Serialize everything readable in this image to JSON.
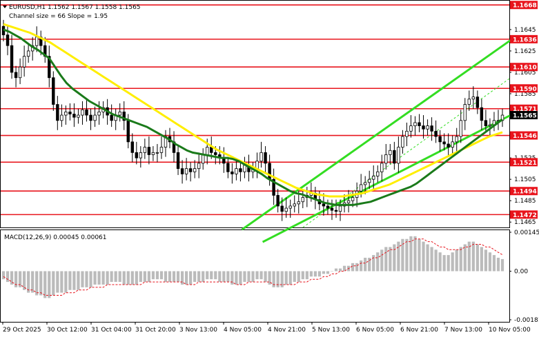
{
  "header": {
    "title": "EURUSD,H1  1.1562 1.1567 1.1558 1.1565",
    "subtitle": "Channel size = 66 Slope = 1.95"
  },
  "macd_label": "MACD(12,26,9) 0.00045 0.00061",
  "colors": {
    "level": "#e8141c",
    "ema_green": "#1a7a1a",
    "ema_yellow": "#ffee00",
    "channel": "#33dd22",
    "candle": "#000000",
    "macd_hist": "#bbbbbb",
    "macd_signal": "#e8141c"
  },
  "chart_data": {
    "type": "candlestick",
    "price_axis": {
      "range": [
        1.146,
        1.1672
      ],
      "ticks": [
        1.1645,
        1.1625,
        1.1605,
        1.1585,
        1.1565,
        1.1546,
        1.1525,
        1.1505,
        1.1485,
        1.1465
      ],
      "tick_labels": [
        "1.1645",
        "1.1625",
        "1.1605",
        "1.1585",
        "1.1565",
        "1.1546",
        "1.1525",
        "1.1505",
        "1.1485",
        "1.1465"
      ]
    },
    "time_axis": {
      "labels": [
        "29 Oct 2025",
        "30 Oct 12:00",
        "31 Oct 04:00",
        "31 Oct 20:00",
        "3 Nov 13:00",
        "4 Nov 05:00",
        "4 Nov 21:00",
        "5 Nov 13:00",
        "6 Nov 05:00",
        "6 Nov 21:00",
        "7 Nov 13:00",
        "10 Nov 05:00"
      ]
    },
    "levels": [
      {
        "value": 1.1668,
        "label": "1.1668"
      },
      {
        "value": 1.1636,
        "label": "1.1636"
      },
      {
        "value": 1.161,
        "label": "1.1610"
      },
      {
        "value": 1.159,
        "label": "1.1590"
      },
      {
        "value": 1.1571,
        "label": "1.1571"
      },
      {
        "value": 1.1546,
        "label": "1.1546"
      },
      {
        "value": 1.1521,
        "label": "1.1521"
      },
      {
        "value": 1.1494,
        "label": "1.1494"
      },
      {
        "value": 1.1472,
        "label": "1.1472"
      }
    ],
    "current_price": {
      "value": 1.1565,
      "label": "1.1565"
    },
    "close_series": [
      1.164,
      1.163,
      1.1605,
      1.16,
      1.161,
      1.162,
      1.1625,
      1.163,
      1.1638,
      1.163,
      1.162,
      1.16,
      1.1575,
      1.156,
      1.1565,
      1.1568,
      1.1566,
      1.1563,
      1.1565,
      1.157,
      1.1565,
      1.156,
      1.1565,
      1.1568,
      1.1572,
      1.1565,
      1.156,
      1.1565,
      1.1568,
      1.156,
      1.154,
      1.153,
      1.1525,
      1.153,
      1.1535,
      1.1528,
      1.153,
      1.153,
      1.1535,
      1.1545,
      1.154,
      1.153,
      1.1515,
      1.151,
      1.1515,
      1.1512,
      1.1515,
      1.152,
      1.1528,
      1.1535,
      1.153,
      1.1528,
      1.1525,
      1.152,
      1.1512,
      1.151,
      1.1515,
      1.1512,
      1.1518,
      1.1512,
      1.1515,
      1.1522,
      1.153,
      1.152,
      1.1505,
      1.149,
      1.148,
      1.1475,
      1.1478,
      1.148,
      1.1482,
      1.1484,
      1.1488,
      1.149,
      1.1492,
      1.1486,
      1.1482,
      1.148,
      1.1478,
      1.1476,
      1.1475,
      1.148,
      1.1483,
      1.1485,
      1.1488,
      1.1494,
      1.15,
      1.1502,
      1.1505,
      1.1508,
      1.1512,
      1.152,
      1.1528,
      1.1532,
      1.152,
      1.1535,
      1.1545,
      1.155,
      1.1555,
      1.1558,
      1.1555,
      1.1552,
      1.1555,
      1.155,
      1.1545,
      1.154,
      1.1538,
      1.1535,
      1.154,
      1.1545,
      1.156,
      1.1575,
      1.158,
      1.1582,
      1.1572,
      1.156,
      1.1555,
      1.1556,
      1.156,
      1.156,
      1.1565
    ],
    "ema_green": [
      1.1645,
      1.1643,
      1.164,
      1.1637,
      1.1633,
      1.1629,
      1.1626,
      1.1622,
      1.1618,
      1.161,
      1.1602,
      1.1595,
      1.159,
      1.1586,
      1.1582,
      1.1578,
      1.1575,
      1.1572,
      1.1569,
      1.1566,
      1.1564,
      1.1562,
      1.156,
      1.1558,
      1.1556,
      1.1554,
      1.1551,
      1.1548,
      1.1545,
      1.1542,
      1.1538,
      1.1535,
      1.1532,
      1.153,
      1.1529,
      1.1528,
      1.1527,
      1.1526,
      1.1525,
      1.1525,
      1.1524,
      1.1522,
      1.1519,
      1.1516,
      1.1513,
      1.151,
      1.1506,
      1.1503,
      1.15,
      1.1497,
      1.1494,
      1.1492,
      1.1491,
      1.1489,
      1.1487,
      1.1485,
      1.1483,
      1.1482,
      1.1481,
      1.1481,
      1.1481,
      1.1481,
      1.1482,
      1.1483,
      1.1484,
      1.1486,
      1.1488,
      1.149,
      1.1492,
      1.1494,
      1.1496,
      1.1498,
      1.1501,
      1.1505,
      1.1509,
      1.1513,
      1.1517,
      1.1521,
      1.1525,
      1.1529,
      1.1533,
      1.1537,
      1.1541,
      1.1545,
      1.1549,
      1.1553,
      1.1557,
      1.1561
    ],
    "ema_yellow": [
      1.165,
      1.1648,
      1.1646,
      1.1644,
      1.1642,
      1.1639,
      1.1636,
      1.1633,
      1.1629,
      1.1625,
      1.1621,
      1.1617,
      1.1613,
      1.1609,
      1.1605,
      1.1601,
      1.1597,
      1.1593,
      1.1589,
      1.1585,
      1.1581,
      1.1577,
      1.1573,
      1.1569,
      1.1565,
      1.1561,
      1.1557,
      1.1553,
      1.1549,
      1.1545,
      1.1541,
      1.1537,
      1.1533,
      1.153,
      1.1527,
      1.1524,
      1.1521,
      1.1518,
      1.1515,
      1.1512,
      1.1509,
      1.1506,
      1.1503,
      1.15,
      1.1497,
      1.1495,
      1.1493,
      1.1491,
      1.149,
      1.1489,
      1.1489,
      1.1489,
      1.149,
      1.1491,
      1.1492,
      1.1494,
      1.1496,
      1.1498,
      1.15,
      1.1503,
      1.1506,
      1.1509,
      1.1512,
      1.1515,
      1.1518,
      1.1521,
      1.1524,
      1.1527,
      1.153,
      1.1533,
      1.1536,
      1.1539,
      1.1542,
      1.1545,
      1.1547,
      1.1549
    ],
    "channel": {
      "lower_start": {
        "bar": 64,
        "value": 1.1458
      },
      "lower_end": {
        "bar": 120,
        "value": 1.1565
      },
      "upper_start": {
        "bar": 64,
        "value": 1.1458
      },
      "upper_end": {
        "bar": 120,
        "value": 1.163
      },
      "mid_start": {
        "bar": 72,
        "value": 1.146
      },
      "mid_end": {
        "bar": 120,
        "value": 1.16
      }
    },
    "macd": {
      "range": [
        -0.00181,
        0.00145
      ],
      "ticks": [
        0.00145,
        0.0,
        -0.00181
      ],
      "tick_labels": [
        "0.00145",
        "0.00",
        "-0.00181"
      ],
      "histogram": [
        -0.0003,
        -0.0004,
        -0.0005,
        -0.0006,
        -0.0006,
        -0.0007,
        -0.0008,
        -0.0008,
        -0.0009,
        -0.0009,
        -0.001,
        -0.001,
        -0.0009,
        -0.0008,
        -0.0008,
        -0.0008,
        -0.0007,
        -0.0007,
        -0.0007,
        -0.0006,
        -0.0006,
        -0.0006,
        -0.0005,
        -0.0005,
        -0.0005,
        -0.0005,
        -0.0004,
        -0.0004,
        -0.0004,
        -0.0005,
        -0.0005,
        -0.0005,
        -0.0005,
        -0.0004,
        -0.0004,
        -0.0004,
        -0.0003,
        -0.0003,
        -0.0003,
        -0.0004,
        -0.0004,
        -0.0004,
        -0.0004,
        -0.0005,
        -0.0005,
        -0.0005,
        -0.0004,
        -0.0004,
        -0.0004,
        -0.0003,
        -0.0003,
        -0.0003,
        -0.0004,
        -0.0004,
        -0.0004,
        -0.0005,
        -0.0005,
        -0.0005,
        -0.0004,
        -0.0004,
        -0.0004,
        -0.0003,
        -0.0003,
        -0.0004,
        -0.0005,
        -0.0006,
        -0.0006,
        -0.0006,
        -0.0005,
        -0.0005,
        -0.0004,
        -0.0004,
        -0.0003,
        -0.0003,
        -0.0002,
        -0.0002,
        -0.0002,
        -0.0001,
        -0.0001,
        0.0,
        0.0001,
        0.0001,
        0.0002,
        0.0002,
        0.0003,
        0.0003,
        0.0004,
        0.0005,
        0.0005,
        0.0006,
        0.0007,
        0.0008,
        0.0009,
        0.0009,
        0.001,
        0.0011,
        0.0012,
        0.0012,
        0.0013,
        0.0013,
        0.0012,
        0.0011,
        0.001,
        0.0009,
        0.0008,
        0.0007,
        0.0006,
        0.0006,
        0.0007,
        0.0008,
        0.0009,
        0.001,
        0.0011,
        0.0011,
        0.001,
        0.0009,
        0.0008,
        0.0007,
        0.0006,
        0.0005,
        0.00045
      ],
      "signal": [
        -0.0002,
        -0.0003,
        -0.0004,
        -0.0005,
        -0.0005,
        -0.0006,
        -0.0007,
        -0.0007,
        -0.0008,
        -0.0008,
        -0.0009,
        -0.0009,
        -0.0009,
        -0.0009,
        -0.0009,
        -0.0008,
        -0.0008,
        -0.0008,
        -0.0007,
        -0.0007,
        -0.0007,
        -0.0006,
        -0.0006,
        -0.0006,
        -0.0006,
        -0.0005,
        -0.0005,
        -0.0005,
        -0.0005,
        -0.0005,
        -0.0005,
        -0.0005,
        -0.0005,
        -0.0005,
        -0.0004,
        -0.0004,
        -0.0004,
        -0.0004,
        -0.0004,
        -0.0004,
        -0.0004,
        -0.0004,
        -0.0004,
        -0.0004,
        -0.0005,
        -0.0005,
        -0.0005,
        -0.0004,
        -0.0004,
        -0.0004,
        -0.0004,
        -0.0004,
        -0.0004,
        -0.0004,
        -0.0004,
        -0.0004,
        -0.0005,
        -0.0005,
        -0.0005,
        -0.0004,
        -0.0004,
        -0.0004,
        -0.0004,
        -0.0004,
        -0.0004,
        -0.0005,
        -0.0005,
        -0.0005,
        -0.0005,
        -0.0005,
        -0.0005,
        -0.0004,
        -0.0004,
        -0.0004,
        -0.0003,
        -0.0003,
        -0.0003,
        -0.0002,
        -0.0002,
        -0.0001,
        -0.0001,
        0.0,
        0.0,
        0.0001,
        0.0002,
        0.0002,
        0.0003,
        0.0003,
        0.0004,
        0.0005,
        0.0005,
        0.0006,
        0.0007,
        0.0008,
        0.0008,
        0.0009,
        0.001,
        0.0011,
        0.0011,
        0.0012,
        0.0012,
        0.0012,
        0.0011,
        0.0011,
        0.001,
        0.0009,
        0.0009,
        0.0008,
        0.0008,
        0.0008,
        0.0008,
        0.0009,
        0.0009,
        0.001,
        0.001,
        0.001,
        0.0009,
        0.0009,
        0.0008,
        0.0007,
        0.00061
      ]
    }
  }
}
